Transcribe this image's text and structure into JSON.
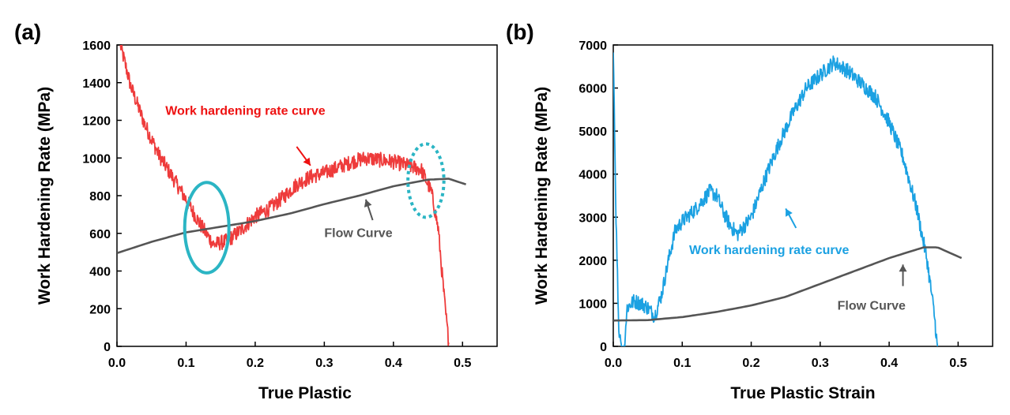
{
  "chart_data": [
    {
      "panel_label": "(a)",
      "type": "line",
      "xlabel": "True Plastic",
      "ylabel": "Work Hardening Rate (MPa)",
      "xlim": [
        0,
        0.55
      ],
      "ylim": [
        0,
        1600
      ],
      "xticks": [
        0.0,
        0.1,
        0.2,
        0.3,
        0.4,
        0.5
      ],
      "xtick_labels": [
        "0.0",
        "0.1",
        "0.2",
        "0.3",
        "0.4",
        "0.5"
      ],
      "yticks": [
        0,
        200,
        400,
        600,
        800,
        1000,
        1200,
        1400,
        1600
      ],
      "ytick_labels": [
        "0",
        "200",
        "400",
        "600",
        "800",
        "1000",
        "1200",
        "1400",
        "1600"
      ],
      "grid": false,
      "series": [
        {
          "name": "Work hardening rate curve",
          "color": "#ee3b3b",
          "noisy": true,
          "x": [
            0.005,
            0.02,
            0.04,
            0.06,
            0.08,
            0.1,
            0.12,
            0.14,
            0.16,
            0.18,
            0.2,
            0.22,
            0.24,
            0.26,
            0.28,
            0.3,
            0.32,
            0.34,
            0.36,
            0.38,
            0.4,
            0.42,
            0.44,
            0.455,
            0.465,
            0.47,
            0.475,
            0.48
          ],
          "y": [
            1600,
            1380,
            1180,
            1020,
            900,
            780,
            650,
            540,
            560,
            620,
            690,
            730,
            790,
            860,
            900,
            920,
            950,
            980,
            1000,
            990,
            980,
            960,
            940,
            820,
            620,
            400,
            200,
            20
          ]
        },
        {
          "name": "Flow Curve",
          "color": "#555555",
          "noisy": false,
          "x": [
            0.0,
            0.05,
            0.1,
            0.15,
            0.2,
            0.25,
            0.3,
            0.35,
            0.4,
            0.45,
            0.48,
            0.505
          ],
          "y": [
            495,
            555,
            605,
            635,
            665,
            705,
            755,
            800,
            850,
            885,
            890,
            860
          ]
        }
      ],
      "annotations": [
        {
          "text": "Work hardening rate curve",
          "color": "#ee1111",
          "x": 0.07,
          "y": 1230,
          "arrow_from": [
            0.26,
            1060
          ],
          "arrow_to": [
            0.28,
            960
          ]
        },
        {
          "text": "Flow Curve",
          "color": "#555555",
          "x": 0.3,
          "y": 580,
          "arrow_from": [
            0.37,
            670
          ],
          "arrow_to": [
            0.36,
            780
          ]
        }
      ],
      "markers": [
        {
          "shape": "circle",
          "style": "solid",
          "color": "#2bb5c4",
          "cx": 0.13,
          "cy": 630,
          "r_x": 0.032,
          "r_y": 240
        },
        {
          "shape": "circle",
          "style": "dotted",
          "color": "#2bb5c4",
          "cx": 0.447,
          "cy": 880,
          "r_x": 0.026,
          "r_y": 195
        }
      ]
    },
    {
      "panel_label": "(b)",
      "type": "line",
      "xlabel": "True Plastic Strain",
      "ylabel": "Work Hardening Rate (MPa)",
      "xlim": [
        0,
        0.55
      ],
      "ylim": [
        0,
        7000
      ],
      "xticks": [
        0.0,
        0.1,
        0.2,
        0.3,
        0.4,
        0.5
      ],
      "xtick_labels": [
        "0.0",
        "0.1",
        "0.2",
        "0.3",
        "0.4",
        "0.5"
      ],
      "yticks": [
        0,
        1000,
        2000,
        3000,
        4000,
        5000,
        6000,
        7000
      ],
      "ytick_labels": [
        "0",
        "1000",
        "2000",
        "3000",
        "4000",
        "5000",
        "6000",
        "7000"
      ],
      "grid": false,
      "series": [
        {
          "name": "Work hardening rate curve",
          "color": "#1ba1e2",
          "noisy": true,
          "x": [
            0.0,
            0.004,
            0.008,
            0.012,
            0.016,
            0.02,
            0.03,
            0.04,
            0.05,
            0.06,
            0.07,
            0.08,
            0.09,
            0.1,
            0.12,
            0.14,
            0.15,
            0.16,
            0.17,
            0.18,
            0.2,
            0.22,
            0.24,
            0.26,
            0.28,
            0.3,
            0.32,
            0.34,
            0.36,
            0.38,
            0.4,
            0.42,
            0.44,
            0.455,
            0.465,
            0.47
          ],
          "y": [
            7000,
            3000,
            400,
            0,
            0,
            900,
            1050,
            1000,
            900,
            700,
            1200,
            2000,
            2700,
            2900,
            3200,
            3600,
            3500,
            3100,
            2800,
            2600,
            3000,
            3900,
            4700,
            5400,
            6000,
            6300,
            6600,
            6400,
            6100,
            5800,
            5200,
            4400,
            3200,
            2000,
            800,
            0
          ]
        },
        {
          "name": "Flow Curve",
          "color": "#555555",
          "noisy": false,
          "x": [
            0.0,
            0.05,
            0.1,
            0.15,
            0.2,
            0.25,
            0.3,
            0.35,
            0.4,
            0.45,
            0.47,
            0.505
          ],
          "y": [
            600,
            610,
            680,
            800,
            950,
            1150,
            1450,
            1750,
            2050,
            2300,
            2300,
            2050
          ]
        }
      ],
      "annotations": [
        {
          "text": "Work hardening rate curve",
          "color": "#1ba1e2",
          "x": 0.11,
          "y": 2140,
          "arrow_from": [
            0.265,
            2750
          ],
          "arrow_to": [
            0.25,
            3200
          ]
        },
        {
          "text": "Flow Curve",
          "color": "#555555",
          "x": 0.325,
          "y": 850,
          "arrow_from": [
            0.42,
            1400
          ],
          "arrow_to": [
            0.42,
            1900
          ]
        }
      ],
      "markers": []
    }
  ]
}
